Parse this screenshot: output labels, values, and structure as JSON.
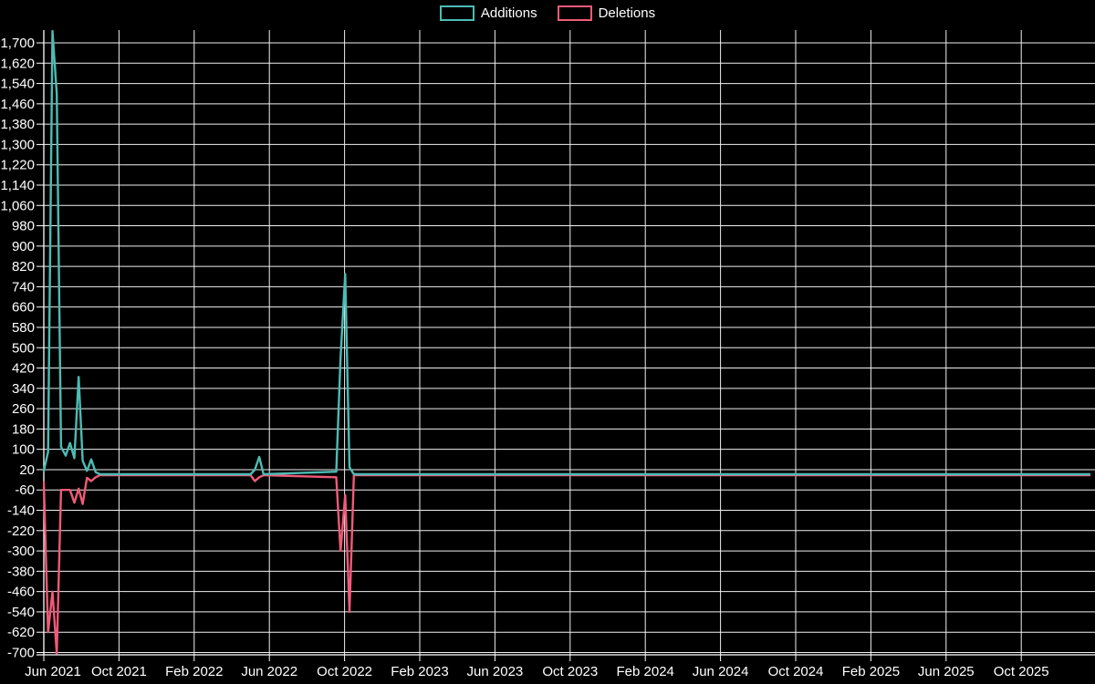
{
  "chart_data": {
    "type": "line",
    "title": "",
    "background_color": "#000000",
    "grid": true,
    "grid_color": "#f0f0f0",
    "text_color": "#ffffff",
    "legend": {
      "position": "top-center",
      "items": [
        {
          "label": "Additions",
          "color": "#4cbcb4"
        },
        {
          "label": "Deletions",
          "color": "#f05a78"
        }
      ]
    },
    "x_axis": {
      "type": "time",
      "tick_labels": [
        "Jun 2021",
        "Oct 2021",
        "Feb 2022",
        "Jun 2022",
        "Oct 2022",
        "Feb 2023",
        "Jun 2023",
        "Oct 2023",
        "Feb 2024",
        "Jun 2024",
        "Oct 2024",
        "Feb 2025",
        "Jun 2025",
        "Oct 2025"
      ],
      "first_tick_date": "2021-06-01",
      "months_per_tick": 4
    },
    "y_axis": {
      "min": -700,
      "max": 1700,
      "tick_step": 80,
      "tick_labels": [
        "1,700",
        "1,620",
        "1,540",
        "1,460",
        "1,380",
        "1,300",
        "1,220",
        "1,140",
        "1,060",
        "980",
        "900",
        "820",
        "740",
        "660",
        "580",
        "500",
        "420",
        "340",
        "260",
        "180",
        "100",
        "20",
        "-60",
        "-140",
        "-220",
        "-300",
        "-380",
        "-460",
        "-540",
        "-620",
        "-700"
      ]
    },
    "series": [
      {
        "name": "Additions",
        "color": "#4cbcb4",
        "points": [
          [
            "2021-06-01",
            15
          ],
          [
            "2021-06-08",
            90
          ],
          [
            "2021-06-15",
            1950
          ],
          [
            "2021-06-22",
            1500
          ],
          [
            "2021-06-29",
            110
          ],
          [
            "2021-07-06",
            75
          ],
          [
            "2021-07-13",
            125
          ],
          [
            "2021-07-20",
            65
          ],
          [
            "2021-07-27",
            385
          ],
          [
            "2021-08-03",
            55
          ],
          [
            "2021-08-10",
            15
          ],
          [
            "2021-08-17",
            60
          ],
          [
            "2021-08-24",
            10
          ],
          [
            "2021-08-31",
            2
          ],
          [
            "2022-05-01",
            2
          ],
          [
            "2022-05-08",
            20
          ],
          [
            "2022-05-15",
            70
          ],
          [
            "2022-05-22",
            2
          ],
          [
            "2022-09-18",
            12
          ],
          [
            "2022-09-25",
            460
          ],
          [
            "2022-10-02",
            790
          ],
          [
            "2022-10-09",
            30
          ],
          [
            "2022-10-16",
            2
          ],
          [
            "2026-01-20",
            2
          ]
        ]
      },
      {
        "name": "Deletions",
        "color": "#f05a78",
        "points": [
          [
            "2021-06-01",
            -30
          ],
          [
            "2021-06-08",
            -620
          ],
          [
            "2021-06-15",
            -460
          ],
          [
            "2021-06-22",
            -715
          ],
          [
            "2021-06-29",
            -60
          ],
          [
            "2021-07-06",
            -60
          ],
          [
            "2021-07-13",
            -60
          ],
          [
            "2021-07-20",
            -110
          ],
          [
            "2021-07-27",
            -55
          ],
          [
            "2021-08-03",
            -115
          ],
          [
            "2021-08-10",
            -12
          ],
          [
            "2021-08-17",
            -25
          ],
          [
            "2021-08-24",
            -10
          ],
          [
            "2021-08-31",
            -2
          ],
          [
            "2022-05-01",
            -2
          ],
          [
            "2022-05-08",
            -25
          ],
          [
            "2022-05-15",
            -10
          ],
          [
            "2022-05-22",
            -2
          ],
          [
            "2022-09-18",
            -10
          ],
          [
            "2022-09-25",
            -300
          ],
          [
            "2022-10-02",
            -80
          ],
          [
            "2022-10-09",
            -540
          ],
          [
            "2022-10-16",
            -2
          ],
          [
            "2026-01-20",
            -2
          ]
        ]
      }
    ]
  }
}
